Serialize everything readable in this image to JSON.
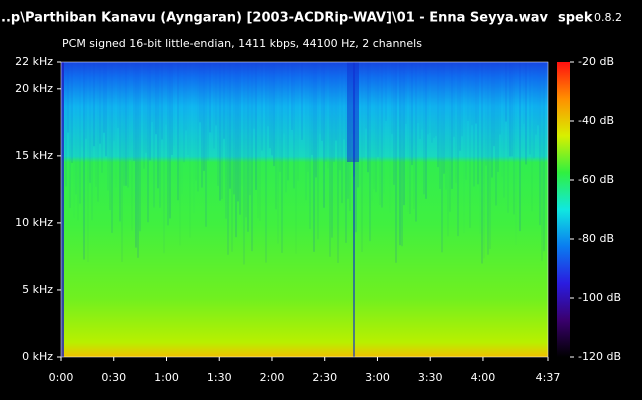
{
  "chart_data": {
    "type": "spectrogram",
    "title": "...p\\Parthiban Kanavu (Ayngaran) [2003-ACDRip-WAV]\\01 - Enna Seyya.wav",
    "app_name": "spek",
    "app_version": "0.8.2",
    "subtitle": "PCM signed 16-bit little-endian, 1411 kbps, 44100 Hz, 2 channels",
    "xlim": [
      0,
      277
    ],
    "xticks": [
      {
        "value": 0,
        "label": "0:00"
      },
      {
        "value": 30,
        "label": "0:30"
      },
      {
        "value": 60,
        "label": "1:00"
      },
      {
        "value": 90,
        "label": "1:30"
      },
      {
        "value": 120,
        "label": "2:00"
      },
      {
        "value": 150,
        "label": "2:30"
      },
      {
        "value": 180,
        "label": "3:00"
      },
      {
        "value": 210,
        "label": "3:30"
      },
      {
        "value": 240,
        "label": "4:00"
      },
      {
        "value": 277,
        "label": "4:37"
      }
    ],
    "ylim": [
      0,
      22
    ],
    "yticks": [
      {
        "value": 0,
        "label": "0 kHz"
      },
      {
        "value": 5,
        "label": "5 kHz"
      },
      {
        "value": 10,
        "label": "10 kHz"
      },
      {
        "value": 15,
        "label": "15 kHz"
      },
      {
        "value": 20,
        "label": "20 kHz"
      },
      {
        "value": 22,
        "label": "22 kHz"
      }
    ],
    "colorbar": {
      "lim": [
        -120,
        -20
      ],
      "ticks": [
        {
          "value": -20,
          "label": "-20 dB"
        },
        {
          "value": -40,
          "label": "-40 dB"
        },
        {
          "value": -60,
          "label": "-60 dB"
        },
        {
          "value": -80,
          "label": "-80 dB"
        },
        {
          "value": -100,
          "label": "-100 dB"
        },
        {
          "value": -120,
          "label": "-120 dB"
        }
      ],
      "colors": [
        "#000000",
        "#3a006e",
        "#2a1ce0",
        "#0a7cf0",
        "#10e8e0",
        "#30f040",
        "#d8f000",
        "#ff9000",
        "#ff1010"
      ]
    }
  }
}
